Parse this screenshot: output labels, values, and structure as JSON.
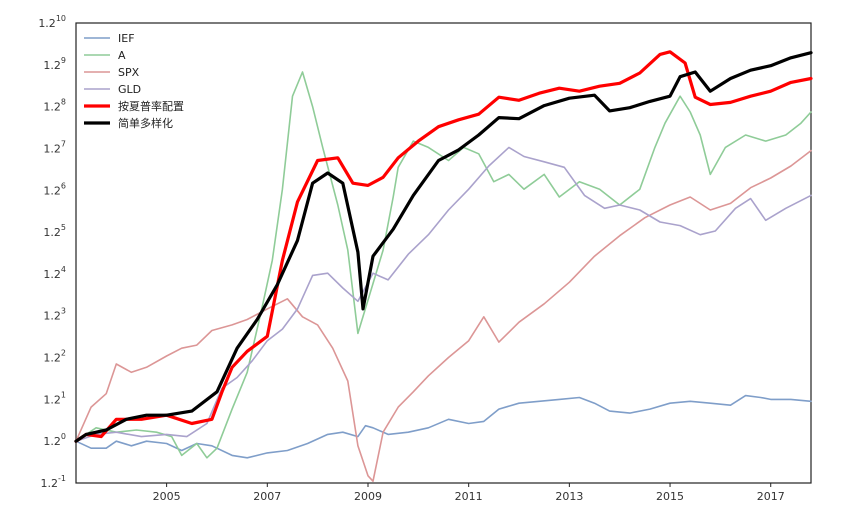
{
  "chart_data": {
    "type": "line",
    "title": "",
    "xlabel": "",
    "ylabel": "",
    "y_scale": "log base 1.2",
    "xlim": [
      2003.2,
      2017.8
    ],
    "ylim_exponent": [
      -1,
      10
    ],
    "x_tick_labels": [
      "2005",
      "2007",
      "2009",
      "2011",
      "2013",
      "2015",
      "2017"
    ],
    "x_tick_values": [
      2005,
      2007,
      2009,
      2011,
      2013,
      2015,
      2017
    ],
    "y_tick_exponents": [
      -1,
      0,
      1,
      2,
      3,
      4,
      5,
      6,
      7,
      8,
      9,
      10
    ],
    "y_tick_base": "1.2",
    "grid": false,
    "legend_position": "top-left",
    "series": [
      {
        "name": "IEF",
        "color": "#7f9ec9",
        "width": 1.6,
        "points": [
          [
            2003.2,
            1.0
          ],
          [
            2003.5,
            0.97
          ],
          [
            2003.8,
            0.97
          ],
          [
            2004.0,
            1.0
          ],
          [
            2004.3,
            0.98
          ],
          [
            2004.6,
            1.0
          ],
          [
            2005.0,
            0.99
          ],
          [
            2005.3,
            0.96
          ],
          [
            2005.6,
            0.99
          ],
          [
            2005.9,
            0.98
          ],
          [
            2006.3,
            0.94
          ],
          [
            2006.6,
            0.93
          ],
          [
            2007.0,
            0.95
          ],
          [
            2007.4,
            0.96
          ],
          [
            2007.8,
            0.99
          ],
          [
            2008.2,
            1.03
          ],
          [
            2008.5,
            1.04
          ],
          [
            2008.8,
            1.02
          ],
          [
            2008.95,
            1.07
          ],
          [
            2009.1,
            1.06
          ],
          [
            2009.4,
            1.03
          ],
          [
            2009.8,
            1.04
          ],
          [
            2010.2,
            1.06
          ],
          [
            2010.6,
            1.1
          ],
          [
            2011.0,
            1.08
          ],
          [
            2011.3,
            1.09
          ],
          [
            2011.6,
            1.15
          ],
          [
            2012.0,
            1.18
          ],
          [
            2012.4,
            1.19
          ],
          [
            2012.8,
            1.2
          ],
          [
            2013.2,
            1.21
          ],
          [
            2013.5,
            1.18
          ],
          [
            2013.8,
            1.14
          ],
          [
            2014.2,
            1.13
          ],
          [
            2014.6,
            1.15
          ],
          [
            2015.0,
            1.18
          ],
          [
            2015.4,
            1.19
          ],
          [
            2015.8,
            1.18
          ],
          [
            2016.2,
            1.17
          ],
          [
            2016.5,
            1.22
          ],
          [
            2016.8,
            1.21
          ],
          [
            2017.0,
            1.2
          ],
          [
            2017.4,
            1.2
          ],
          [
            2017.8,
            1.19
          ]
        ]
      },
      {
        "name": "A",
        "color": "#8fcc98",
        "width": 1.6,
        "points": [
          [
            2003.2,
            1.0
          ],
          [
            2003.6,
            1.06
          ],
          [
            2004.0,
            1.04
          ],
          [
            2004.4,
            1.05
          ],
          [
            2004.8,
            1.04
          ],
          [
            2005.1,
            1.02
          ],
          [
            2005.3,
            0.94
          ],
          [
            2005.6,
            0.99
          ],
          [
            2005.8,
            0.93
          ],
          [
            2006.0,
            0.97
          ],
          [
            2006.3,
            1.15
          ],
          [
            2006.6,
            1.35
          ],
          [
            2006.9,
            1.8
          ],
          [
            2007.1,
            2.2
          ],
          [
            2007.3,
            3.0
          ],
          [
            2007.5,
            4.5
          ],
          [
            2007.7,
            5.0
          ],
          [
            2007.9,
            4.3
          ],
          [
            2008.1,
            3.6
          ],
          [
            2008.4,
            2.8
          ],
          [
            2008.6,
            2.3
          ],
          [
            2008.8,
            1.6
          ],
          [
            2009.0,
            1.85
          ],
          [
            2009.3,
            2.3
          ],
          [
            2009.5,
            2.9
          ],
          [
            2009.6,
            3.3
          ],
          [
            2009.9,
            3.7
          ],
          [
            2010.2,
            3.6
          ],
          [
            2010.6,
            3.4
          ],
          [
            2010.9,
            3.6
          ],
          [
            2011.2,
            3.5
          ],
          [
            2011.5,
            3.1
          ],
          [
            2011.8,
            3.2
          ],
          [
            2012.1,
            3.0
          ],
          [
            2012.5,
            3.2
          ],
          [
            2012.8,
            2.9
          ],
          [
            2013.2,
            3.1
          ],
          [
            2013.6,
            3.0
          ],
          [
            2014.0,
            2.8
          ],
          [
            2014.4,
            3.0
          ],
          [
            2014.7,
            3.6
          ],
          [
            2014.9,
            4.0
          ],
          [
            2015.2,
            4.5
          ],
          [
            2015.4,
            4.2
          ],
          [
            2015.6,
            3.8
          ],
          [
            2015.8,
            3.2
          ],
          [
            2016.1,
            3.6
          ],
          [
            2016.5,
            3.8
          ],
          [
            2016.9,
            3.7
          ],
          [
            2017.3,
            3.8
          ],
          [
            2017.6,
            4.0
          ],
          [
            2017.8,
            4.2
          ]
        ]
      },
      {
        "name": "SPX",
        "color": "#dc9696",
        "width": 1.6,
        "points": [
          [
            2003.2,
            1.0
          ],
          [
            2003.5,
            1.16
          ],
          [
            2003.8,
            1.23
          ],
          [
            2004.0,
            1.4
          ],
          [
            2004.3,
            1.35
          ],
          [
            2004.6,
            1.38
          ],
          [
            2005.0,
            1.45
          ],
          [
            2005.3,
            1.5
          ],
          [
            2005.6,
            1.52
          ],
          [
            2005.9,
            1.62
          ],
          [
            2006.3,
            1.66
          ],
          [
            2006.6,
            1.7
          ],
          [
            2007.0,
            1.78
          ],
          [
            2007.4,
            1.86
          ],
          [
            2007.7,
            1.72
          ],
          [
            2008.0,
            1.66
          ],
          [
            2008.3,
            1.5
          ],
          [
            2008.6,
            1.3
          ],
          [
            2008.8,
            0.98
          ],
          [
            2009.0,
            0.86
          ],
          [
            2009.1,
            0.84
          ],
          [
            2009.3,
            1.04
          ],
          [
            2009.6,
            1.16
          ],
          [
            2009.9,
            1.24
          ],
          [
            2010.2,
            1.33
          ],
          [
            2010.6,
            1.44
          ],
          [
            2011.0,
            1.55
          ],
          [
            2011.3,
            1.72
          ],
          [
            2011.6,
            1.54
          ],
          [
            2012.0,
            1.68
          ],
          [
            2012.5,
            1.82
          ],
          [
            2013.0,
            2.0
          ],
          [
            2013.5,
            2.24
          ],
          [
            2014.0,
            2.45
          ],
          [
            2014.5,
            2.65
          ],
          [
            2015.0,
            2.8
          ],
          [
            2015.4,
            2.9
          ],
          [
            2015.8,
            2.74
          ],
          [
            2016.2,
            2.82
          ],
          [
            2016.6,
            3.02
          ],
          [
            2017.0,
            3.15
          ],
          [
            2017.4,
            3.32
          ],
          [
            2017.8,
            3.55
          ]
        ]
      },
      {
        "name": "GLD",
        "color": "#aaa2cc",
        "width": 1.6,
        "points": [
          [
            2003.2,
            1.0
          ],
          [
            2003.6,
            1.03
          ],
          [
            2004.0,
            1.04
          ],
          [
            2004.5,
            1.02
          ],
          [
            2005.0,
            1.03
          ],
          [
            2005.4,
            1.02
          ],
          [
            2005.8,
            1.08
          ],
          [
            2006.1,
            1.26
          ],
          [
            2006.4,
            1.32
          ],
          [
            2006.7,
            1.42
          ],
          [
            2007.0,
            1.55
          ],
          [
            2007.3,
            1.63
          ],
          [
            2007.6,
            1.78
          ],
          [
            2007.9,
            2.06
          ],
          [
            2008.2,
            2.08
          ],
          [
            2008.5,
            1.95
          ],
          [
            2008.8,
            1.84
          ],
          [
            2009.1,
            2.08
          ],
          [
            2009.4,
            2.02
          ],
          [
            2009.8,
            2.26
          ],
          [
            2010.2,
            2.46
          ],
          [
            2010.6,
            2.74
          ],
          [
            2011.0,
            3.0
          ],
          [
            2011.4,
            3.32
          ],
          [
            2011.8,
            3.6
          ],
          [
            2012.1,
            3.46
          ],
          [
            2012.5,
            3.38
          ],
          [
            2012.9,
            3.3
          ],
          [
            2013.3,
            2.92
          ],
          [
            2013.7,
            2.76
          ],
          [
            2014.0,
            2.8
          ],
          [
            2014.4,
            2.74
          ],
          [
            2014.8,
            2.6
          ],
          [
            2015.2,
            2.56
          ],
          [
            2015.6,
            2.46
          ],
          [
            2015.9,
            2.5
          ],
          [
            2016.3,
            2.76
          ],
          [
            2016.6,
            2.88
          ],
          [
            2016.9,
            2.62
          ],
          [
            2017.3,
            2.76
          ],
          [
            2017.8,
            2.92
          ]
        ]
      },
      {
        "name": "按夏普率配置",
        "color": "#ff0000",
        "width": 3.2,
        "points": [
          [
            2003.2,
            1.0
          ],
          [
            2003.4,
            1.03
          ],
          [
            2003.7,
            1.02
          ],
          [
            2004.0,
            1.1
          ],
          [
            2004.5,
            1.1
          ],
          [
            2005.0,
            1.12
          ],
          [
            2005.5,
            1.08
          ],
          [
            2005.9,
            1.1
          ],
          [
            2006.1,
            1.24
          ],
          [
            2006.3,
            1.38
          ],
          [
            2006.6,
            1.48
          ],
          [
            2007.0,
            1.58
          ],
          [
            2007.3,
            2.2
          ],
          [
            2007.6,
            2.84
          ],
          [
            2008.0,
            3.4
          ],
          [
            2008.4,
            3.44
          ],
          [
            2008.7,
            3.08
          ],
          [
            2009.0,
            3.05
          ],
          [
            2009.3,
            3.16
          ],
          [
            2009.6,
            3.44
          ],
          [
            2010.0,
            3.7
          ],
          [
            2010.4,
            3.94
          ],
          [
            2010.8,
            4.06
          ],
          [
            2011.2,
            4.16
          ],
          [
            2011.6,
            4.48
          ],
          [
            2012.0,
            4.42
          ],
          [
            2012.4,
            4.56
          ],
          [
            2012.8,
            4.66
          ],
          [
            2013.2,
            4.6
          ],
          [
            2013.6,
            4.7
          ],
          [
            2014.0,
            4.76
          ],
          [
            2014.4,
            4.98
          ],
          [
            2014.8,
            5.4
          ],
          [
            2015.0,
            5.46
          ],
          [
            2015.3,
            5.2
          ],
          [
            2015.5,
            4.48
          ],
          [
            2015.8,
            4.34
          ],
          [
            2016.2,
            4.38
          ],
          [
            2016.6,
            4.5
          ],
          [
            2017.0,
            4.6
          ],
          [
            2017.4,
            4.78
          ],
          [
            2017.8,
            4.86
          ]
        ]
      },
      {
        "name": "简单多样化",
        "color": "#000000",
        "width": 3.2,
        "points": [
          [
            2003.2,
            1.0
          ],
          [
            2003.4,
            1.03
          ],
          [
            2003.8,
            1.05
          ],
          [
            2004.2,
            1.1
          ],
          [
            2004.6,
            1.12
          ],
          [
            2005.0,
            1.12
          ],
          [
            2005.5,
            1.14
          ],
          [
            2006.0,
            1.24
          ],
          [
            2006.4,
            1.5
          ],
          [
            2006.8,
            1.7
          ],
          [
            2007.2,
            1.98
          ],
          [
            2007.6,
            2.4
          ],
          [
            2007.9,
            3.08
          ],
          [
            2008.2,
            3.22
          ],
          [
            2008.5,
            3.08
          ],
          [
            2008.8,
            2.28
          ],
          [
            2008.9,
            1.78
          ],
          [
            2009.1,
            2.24
          ],
          [
            2009.5,
            2.52
          ],
          [
            2009.9,
            2.92
          ],
          [
            2010.4,
            3.4
          ],
          [
            2010.8,
            3.56
          ],
          [
            2011.2,
            3.8
          ],
          [
            2011.6,
            4.1
          ],
          [
            2012.0,
            4.08
          ],
          [
            2012.5,
            4.32
          ],
          [
            2013.0,
            4.46
          ],
          [
            2013.5,
            4.52
          ],
          [
            2013.8,
            4.22
          ],
          [
            2014.2,
            4.28
          ],
          [
            2014.6,
            4.4
          ],
          [
            2015.0,
            4.5
          ],
          [
            2015.2,
            4.9
          ],
          [
            2015.5,
            5.0
          ],
          [
            2015.8,
            4.6
          ],
          [
            2016.2,
            4.86
          ],
          [
            2016.6,
            5.04
          ],
          [
            2017.0,
            5.14
          ],
          [
            2017.4,
            5.32
          ],
          [
            2017.8,
            5.44
          ]
        ]
      }
    ]
  }
}
